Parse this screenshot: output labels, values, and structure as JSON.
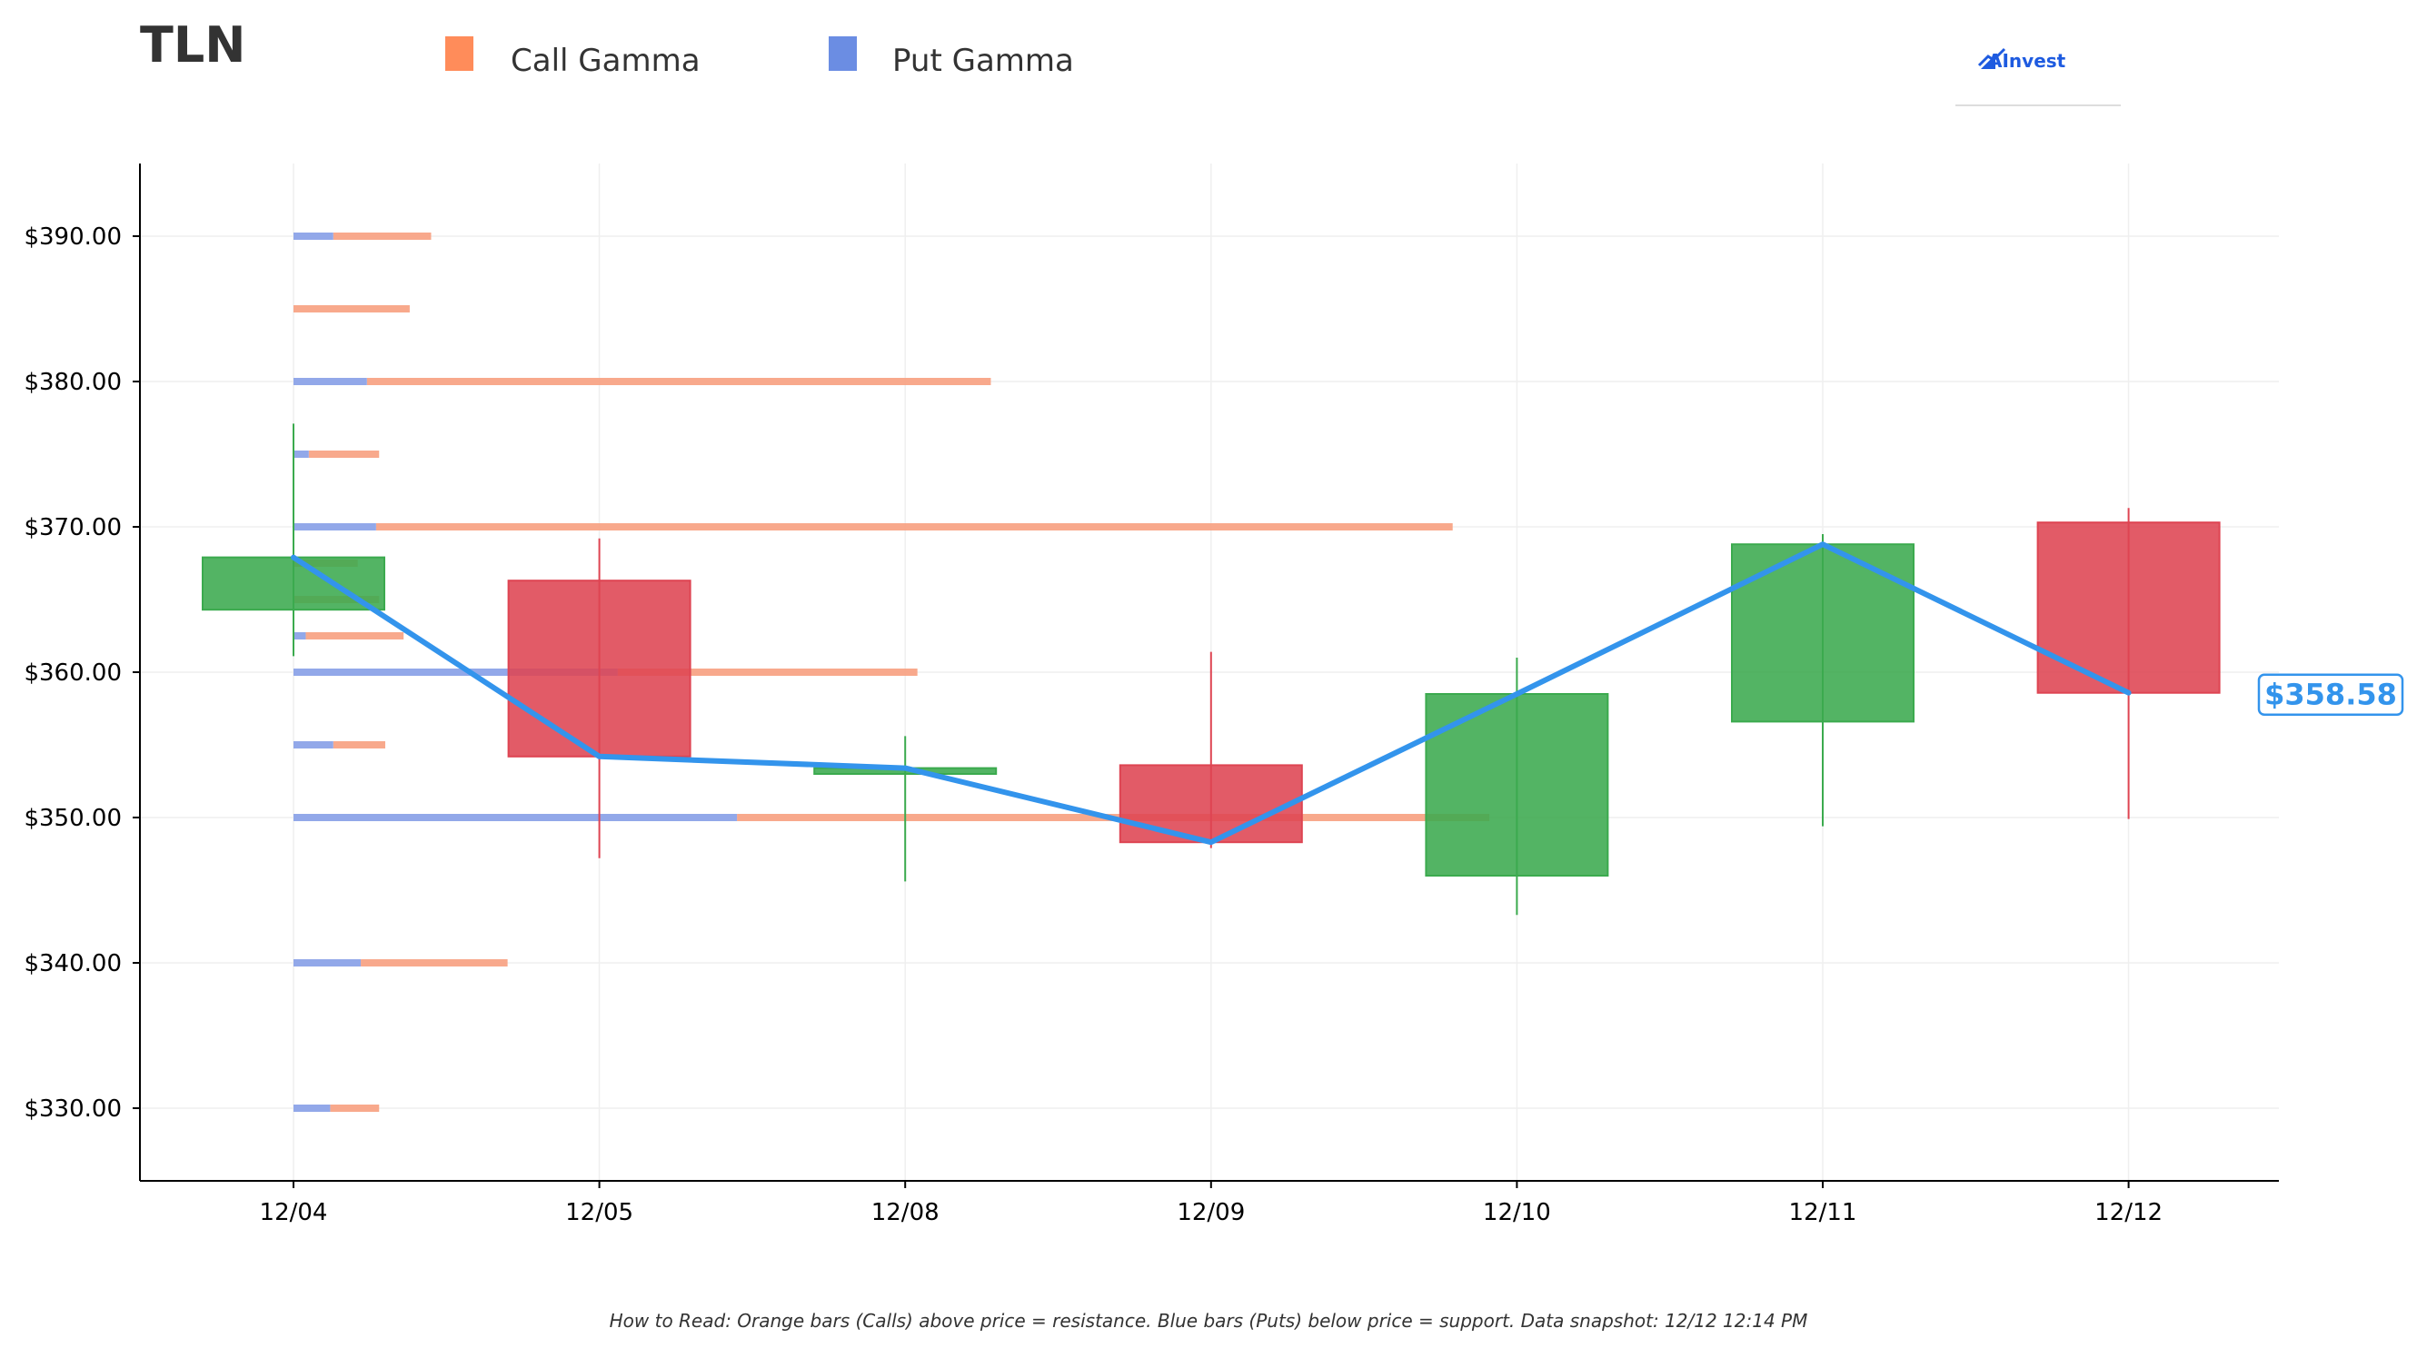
{
  "chart_data": {
    "type": "candlestick",
    "title": "TLN",
    "brand": "AInvest",
    "legend": [
      {
        "label": "Call Gamma",
        "color": "#FF8C5A"
      },
      {
        "label": "Put Gamma",
        "color": "#6B8DE3"
      }
    ],
    "legend_placement": "top",
    "categories": [
      "12/04",
      "12/05",
      "12/08",
      "12/09",
      "12/10",
      "12/11",
      "12/12"
    ],
    "ylim": [
      325,
      395
    ],
    "yticks": [
      330,
      340,
      350,
      360,
      370,
      380,
      390
    ],
    "ytick_labels": [
      "$330.00",
      "$340.00",
      "$350.00",
      "$360.00",
      "$370.00",
      "$380.00",
      "$390.00"
    ],
    "grid": true,
    "candles": [
      {
        "date": "12/04",
        "open": 364.3,
        "high": 377.1,
        "low": 361.1,
        "close": 367.9
      },
      {
        "date": "12/05",
        "open": 366.3,
        "high": 369.2,
        "low": 347.2,
        "close": 354.2
      },
      {
        "date": "12/08",
        "open": 353.0,
        "high": 355.6,
        "low": 345.6,
        "close": 353.4
      },
      {
        "date": "12/09",
        "open": 353.6,
        "high": 361.4,
        "low": 347.9,
        "close": 348.3
      },
      {
        "date": "12/10",
        "open": 346.0,
        "high": 361.0,
        "low": 343.3,
        "close": 358.5
      },
      {
        "date": "12/11",
        "open": 356.6,
        "high": 369.5,
        "low": 349.4,
        "close": 368.8
      },
      {
        "date": "12/12",
        "open": 370.3,
        "high": 371.3,
        "low": 349.9,
        "close": 358.58
      }
    ],
    "close_line": [
      367.9,
      354.2,
      353.4,
      348.3,
      358.5,
      368.8,
      358.58
    ],
    "last_price_label": "$358.58",
    "gamma_levels": [
      {
        "strike": 390.0,
        "put": 0.13,
        "call": 0.32
      },
      {
        "strike": 385.0,
        "put": 0.0,
        "call": 0.38
      },
      {
        "strike": 380.0,
        "put": 0.24,
        "call": 2.04
      },
      {
        "strike": 375.0,
        "put": 0.05,
        "call": 0.23
      },
      {
        "strike": 370.0,
        "put": 0.27,
        "call": 3.52
      },
      {
        "strike": 367.5,
        "put": 0.0,
        "call": 0.21
      },
      {
        "strike": 365.0,
        "put": 0.0,
        "call": 0.28
      },
      {
        "strike": 362.5,
        "put": 0.04,
        "call": 0.32
      },
      {
        "strike": 360.0,
        "put": 1.06,
        "call": 0.98
      },
      {
        "strike": 355.0,
        "put": 0.13,
        "call": 0.17
      },
      {
        "strike": 350.0,
        "put": 1.45,
        "call": 2.46
      },
      {
        "strike": 340.0,
        "put": 0.22,
        "call": 0.48
      },
      {
        "strike": 330.0,
        "put": 0.12,
        "call": 0.16
      }
    ],
    "footnote": "How to Read: Orange bars (Calls) above price = resistance. Blue bars (Puts) below price = support. Data snapshot: 12/12 12:14 PM",
    "colors": {
      "up": "#3BAA4E",
      "down": "#DE4452",
      "line": "#3394EC",
      "call": "#F7A07F",
      "put": "#8CA3E8",
      "grid": "#EFEFEF",
      "axis": "#000000"
    }
  }
}
